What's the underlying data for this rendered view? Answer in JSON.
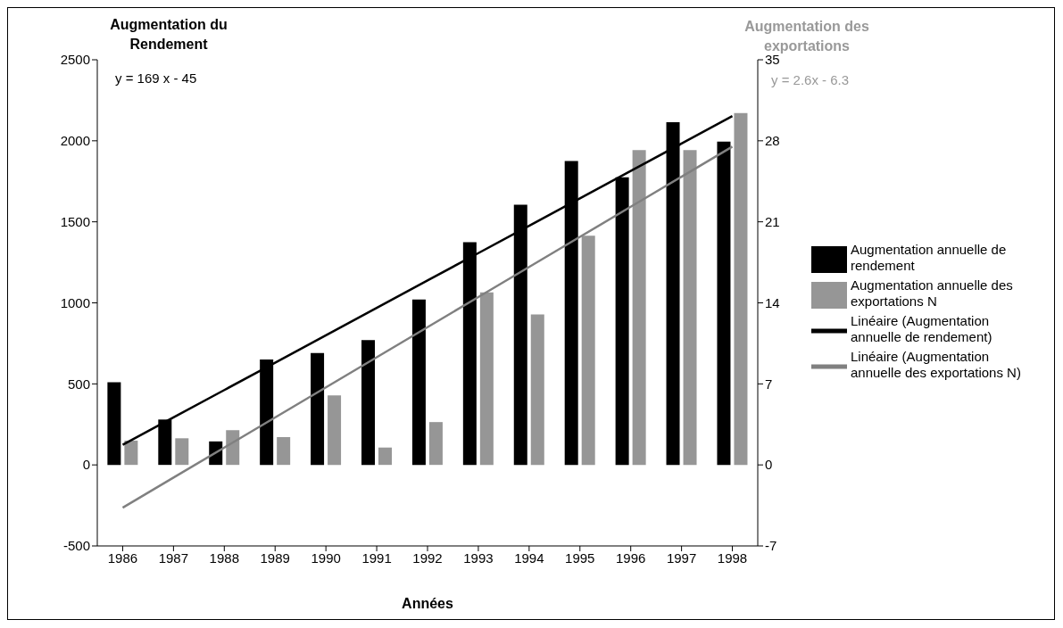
{
  "chart_data": {
    "type": "bar",
    "ylabel": "Augmentation du Rendement",
    "y2label": "Augmentation des exportations",
    "xlabel": "Années",
    "annotations": [
      "y = 169 x - 45",
      "y = 2.6x - 6.3"
    ],
    "categories": [
      "1986",
      "1987",
      "1988",
      "1989",
      "1990",
      "1991",
      "1992",
      "1993",
      "1994",
      "1995",
      "1996",
      "1997",
      "1998"
    ],
    "series": [
      {
        "name": "Augmentation annuelle de rendement",
        "color": "#000000",
        "values": [
          510,
          280,
          145,
          650,
          690,
          770,
          1020,
          1375,
          1605,
          1875,
          1775,
          2115,
          1995
        ]
      },
      {
        "name": "Augmentation annuelle des exportations N",
        "axis": "y2",
        "color": "#969696",
        "values": [
          2.1,
          2.3,
          3.0,
          2.4,
          6.0,
          1.5,
          3.7,
          14.9,
          13.0,
          19.8,
          27.2,
          27.2,
          30.4
        ]
      },
      {
        "name": "Linéaire (Augmentation annuelle de rendement)",
        "type": "line",
        "color": "#000000",
        "values": [
          124,
          293,
          462,
          631,
          800,
          969,
          1138,
          1307,
          1476,
          1645,
          1814,
          1983,
          2152
        ]
      },
      {
        "name": "Linéaire (Augmentation annuelle des exportations N)",
        "type": "line",
        "axis": "y2",
        "color": "#808080",
        "values": [
          -3.7,
          -1.1,
          1.5,
          4.1,
          6.7,
          9.3,
          11.9,
          14.5,
          17.1,
          19.7,
          22.3,
          24.9,
          27.5
        ]
      }
    ],
    "ylim": [
      -500,
      2500
    ],
    "yticks": [
      -500,
      0,
      500,
      1000,
      1500,
      2000,
      2500
    ],
    "y2lim": [
      -7,
      35
    ],
    "y2ticks": [
      -7,
      0,
      7,
      14,
      21,
      28,
      35
    ],
    "grid": false,
    "legend": "right",
    "marker": "none",
    "line_style": "solid"
  }
}
